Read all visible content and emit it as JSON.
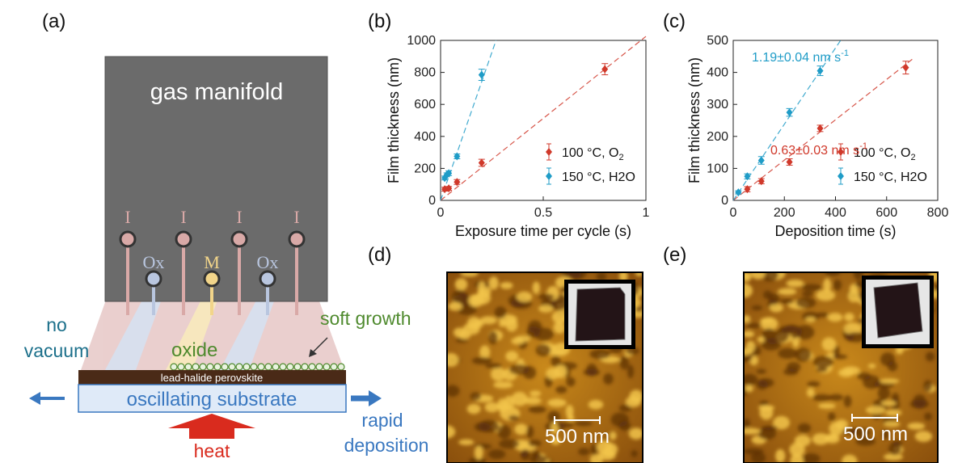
{
  "panels": {
    "a": {
      "label": "(a)",
      "manifold_label": "gas manifold",
      "inlet_labels": [
        "I",
        "Ox",
        "I",
        "M",
        "I",
        "Ox",
        "I"
      ],
      "text_no": "no",
      "text_vacuum": "vacuum",
      "text_oxide": "oxide",
      "text_soft_growth": "soft growth",
      "text_perovskite": "lead-halide perovskite",
      "text_substrate": "oscillating substrate",
      "text_heat": "heat",
      "text_rapid": "rapid",
      "text_deposition": "deposition",
      "colors": {
        "manifold": "#6b6b6b",
        "inert": "#d9a9a7",
        "oxidant": "#b9c6df",
        "metal": "#f2d58a",
        "substrate": "#dfeaf8",
        "perovskite": "#4a2a17",
        "arrow_blue": "#3a78c0",
        "heat_red": "#d92b1e",
        "oxide_green": "#4f8a2e",
        "vacuum_teal": "#1b6f8a"
      }
    },
    "b": {
      "label": "(b)"
    },
    "c": {
      "label": "(c)"
    },
    "d": {
      "label": "(d)",
      "scale_bar": "500 nm"
    },
    "e": {
      "label": "(e)",
      "scale_bar": "500 nm"
    }
  },
  "chart_data": [
    {
      "panel": "b",
      "type": "scatter",
      "xlabel": "Exposure time per cycle (s)",
      "ylabel": "Film thickness (nm)",
      "xlim": [
        0,
        1
      ],
      "ylim": [
        0,
        1000
      ],
      "xticks": [
        0,
        0.5,
        1
      ],
      "xtick_labels": [
        "0",
        "0.5",
        "1"
      ],
      "yticks": [
        0,
        200,
        400,
        600,
        800,
        1000
      ],
      "ytick_labels": [
        "0",
        "200",
        "400",
        "600",
        "800",
        "1000"
      ],
      "legend_position": "lower-right",
      "series": [
        {
          "name": "100 °C, O2",
          "color": "#d0392b",
          "marker": "diamond",
          "x": [
            0.02,
            0.04,
            0.08,
            0.2,
            0.8
          ],
          "y": [
            70,
            75,
            115,
            235,
            820
          ],
          "yerr": [
            12,
            12,
            15,
            22,
            35
          ],
          "fit_line": {
            "x": [
              0,
              1
            ],
            "y": [
              0,
              1025
            ]
          }
        },
        {
          "name": "150 °C, H2O",
          "color": "#1f9cc7",
          "marker": "diamond",
          "x": [
            0.02,
            0.03,
            0.04,
            0.08,
            0.2
          ],
          "y": [
            140,
            160,
            170,
            275,
            785
          ],
          "yerr": [
            12,
            12,
            15,
            15,
            35
          ],
          "fit_line": {
            "x": [
              0,
              0.27
            ],
            "y": [
              0,
              1000
            ]
          }
        }
      ]
    },
    {
      "panel": "c",
      "type": "scatter",
      "xlabel": "Deposition time (s)",
      "ylabel": "Film thickness (nm)",
      "xlim": [
        0,
        800
      ],
      "ylim": [
        0,
        500
      ],
      "xticks": [
        0,
        200,
        400,
        600,
        800
      ],
      "xtick_labels": [
        "0",
        "200",
        "400",
        "600",
        "800"
      ],
      "yticks": [
        0,
        100,
        200,
        300,
        400,
        500
      ],
      "ytick_labels": [
        "0",
        "100",
        "200",
        "300",
        "400",
        "500"
      ],
      "legend_position": "lower-right",
      "annotations": [
        {
          "text": "1.19±0.04 nm s",
          "sup": "-1",
          "color": "#1f9cc7"
        },
        {
          "text": "0.63±0.03 nm s",
          "sup": "-1",
          "color": "#d0392b"
        }
      ],
      "series": [
        {
          "name": "100 °C, O2",
          "color": "#d0392b",
          "marker": "diamond",
          "x": [
            55,
            110,
            220,
            340,
            675
          ],
          "y": [
            35,
            60,
            120,
            225,
            415
          ],
          "yerr": [
            8,
            8,
            10,
            10,
            20
          ],
          "fit_line": {
            "x": [
              0,
              700
            ],
            "y": [
              0,
              441
            ]
          }
        },
        {
          "name": "150 °C, H2O",
          "color": "#1f9cc7",
          "marker": "diamond",
          "x": [
            20,
            55,
            110,
            220,
            340
          ],
          "y": [
            25,
            75,
            125,
            275,
            405
          ],
          "yerr": [
            5,
            8,
            12,
            12,
            15
          ],
          "fit_line": {
            "x": [
              0,
              420
            ],
            "y": [
              0,
              500
            ]
          }
        }
      ]
    }
  ]
}
